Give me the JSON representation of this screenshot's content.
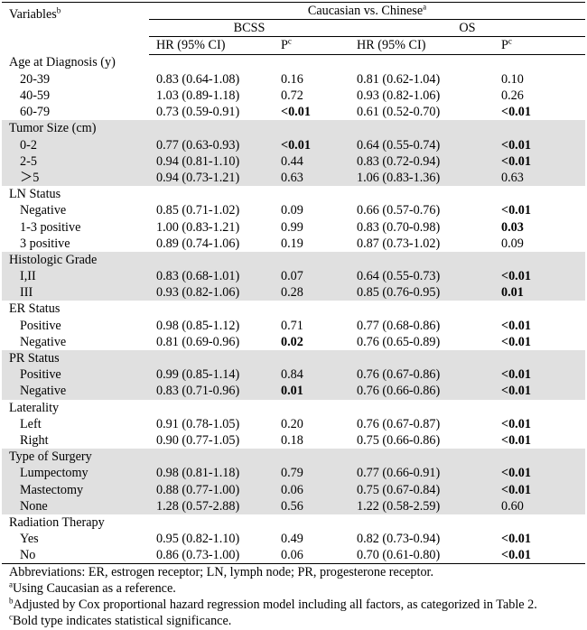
{
  "header": {
    "variables_label": "Variables",
    "variables_sup": "b",
    "comparison": "Caucasian vs. Chinese",
    "comparison_sup": "a",
    "bcss": "BCSS",
    "os": "OS",
    "hr_label": "HR (95% CI)",
    "p_label": "P",
    "p_sup": "c"
  },
  "groups": [
    {
      "title": "Age at Diagnosis (y)",
      "shaded": false,
      "rows": [
        {
          "label": "20-39",
          "bcss_hr": "0.83 (0.64-1.08)",
          "bcss_p": "0.16",
          "bcss_bold": false,
          "os_hr": "0.81 (0.62-1.04)",
          "os_p": "0.10",
          "os_bold": false
        },
        {
          "label": "40-59",
          "bcss_hr": "1.03 (0.89-1.18)",
          "bcss_p": "0.72",
          "bcss_bold": false,
          "os_hr": "0.93 (0.82-1.06)",
          "os_p": "0.26",
          "os_bold": false
        },
        {
          "label": "60-79",
          "bcss_hr": "0.73 (0.59-0.91)",
          "bcss_p": "<0.01",
          "bcss_bold": true,
          "os_hr": "0.61 (0.52-0.70)",
          "os_p": "<0.01",
          "os_bold": true
        }
      ]
    },
    {
      "title": "Tumor Size (cm)",
      "shaded": true,
      "rows": [
        {
          "label": "0-2",
          "bcss_hr": "0.77 (0.63-0.93)",
          "bcss_p": "<0.01",
          "bcss_bold": true,
          "os_hr": "0.64 (0.55-0.74)",
          "os_p": "<0.01",
          "os_bold": true
        },
        {
          "label": "2-5",
          "bcss_hr": "0.94 (0.81-1.10)",
          "bcss_p": "0.44",
          "bcss_bold": false,
          "os_hr": "0.83 (0.72-0.94)",
          "os_p": "<0.01",
          "os_bold": true
        },
        {
          "label": "＞5",
          "bcss_hr": "0.94 (0.73-1.21)",
          "bcss_p": "0.63",
          "bcss_bold": false,
          "os_hr": "1.06 (0.83-1.36)",
          "os_p": "0.63",
          "os_bold": false
        }
      ]
    },
    {
      "title": "LN Status",
      "shaded": false,
      "rows": [
        {
          "label": "Negative",
          "bcss_hr": "0.85 (0.71-1.02)",
          "bcss_p": "0.09",
          "bcss_bold": false,
          "os_hr": "0.66 (0.57-0.76)",
          "os_p": "<0.01",
          "os_bold": true
        },
        {
          "label": "1-3 positive",
          "bcss_hr": "1.00 (0.83-1.21)",
          "bcss_p": "0.99",
          "bcss_bold": false,
          "os_hr": "0.83 (0.70-0.98)",
          "os_p": "0.03",
          "os_bold": true
        },
        {
          "label": "3 positive",
          "bcss_hr": "0.89 (0.74-1.06)",
          "bcss_p": "0.19",
          "bcss_bold": false,
          "os_hr": "0.87 (0.73-1.02)",
          "os_p": "0.09",
          "os_bold": false
        }
      ]
    },
    {
      "title": "Histologic Grade",
      "shaded": true,
      "rows": [
        {
          "label": "I,II",
          "bcss_hr": "0.83 (0.68-1.01)",
          "bcss_p": "0.07",
          "bcss_bold": false,
          "os_hr": "0.64 (0.55-0.73)",
          "os_p": "<0.01",
          "os_bold": true
        },
        {
          "label": "III",
          "bcss_hr": "0.93 (0.82-1.06)",
          "bcss_p": "0.28",
          "bcss_bold": false,
          "os_hr": "0.85 (0.76-0.95)",
          "os_p": "0.01",
          "os_bold": true
        }
      ]
    },
    {
      "title": "ER Status",
      "shaded": false,
      "rows": [
        {
          "label": "Positive",
          "bcss_hr": "0.98 (0.85-1.12)",
          "bcss_p": "0.71",
          "bcss_bold": false,
          "os_hr": "0.77 (0.68-0.86)",
          "os_p": "<0.01",
          "os_bold": true
        },
        {
          "label": "Negative",
          "bcss_hr": "0.81 (0.69-0.96)",
          "bcss_p": "0.02",
          "bcss_bold": true,
          "os_hr": "0.76 (0.65-0.89)",
          "os_p": "<0.01",
          "os_bold": true
        }
      ]
    },
    {
      "title": "PR Status",
      "shaded": true,
      "rows": [
        {
          "label": "Positive",
          "bcss_hr": "0.99 (0.85-1.14)",
          "bcss_p": "0.84",
          "bcss_bold": false,
          "os_hr": "0.76 (0.67-0.86)",
          "os_p": "<0.01",
          "os_bold": true
        },
        {
          "label": "Negative",
          "bcss_hr": "0.83 (0.71-0.96)",
          "bcss_p": "0.01",
          "bcss_bold": true,
          "os_hr": "0.76 (0.66-0.86)",
          "os_p": "<0.01",
          "os_bold": true
        }
      ]
    },
    {
      "title": "Laterality",
      "shaded": false,
      "rows": [
        {
          "label": "Left",
          "bcss_hr": "0.91 (0.78-1.05)",
          "bcss_p": "0.20",
          "bcss_bold": false,
          "os_hr": "0.76 (0.67-0.87)",
          "os_p": "<0.01",
          "os_bold": true
        },
        {
          "label": "Right",
          "bcss_hr": "0.90 (0.77-1.05)",
          "bcss_p": "0.18",
          "bcss_bold": false,
          "os_hr": "0.75 (0.66-0.86)",
          "os_p": "<0.01",
          "os_bold": true
        }
      ]
    },
    {
      "title": "Type of Surgery",
      "shaded": true,
      "rows": [
        {
          "label": "Lumpectomy",
          "bcss_hr": "0.98 (0.81-1.18)",
          "bcss_p": "0.79",
          "bcss_bold": false,
          "os_hr": "0.77 (0.66-0.91)",
          "os_p": "<0.01",
          "os_bold": true
        },
        {
          "label": "Mastectomy",
          "bcss_hr": "0.88 (0.77-1.00)",
          "bcss_p": "0.06",
          "bcss_bold": false,
          "os_hr": "0.75 (0.67-0.84)",
          "os_p": "<0.01",
          "os_bold": true
        },
        {
          "label": "None",
          "bcss_hr": "1.28 (0.57-2.88)",
          "bcss_p": "0.56",
          "bcss_bold": false,
          "os_hr": "1.22 (0.58-2.59)",
          "os_p": "0.60",
          "os_bold": false
        }
      ]
    },
    {
      "title": "Radiation Therapy",
      "shaded": false,
      "rows": [
        {
          "label": "Yes",
          "bcss_hr": "0.95 (0.82-1.10)",
          "bcss_p": "0.49",
          "bcss_bold": false,
          "os_hr": "0.82 (0.73-0.94)",
          "os_p": "<0.01",
          "os_bold": true
        },
        {
          "label": "No",
          "bcss_hr": "0.86 (0.73-1.00)",
          "bcss_p": "0.06",
          "bcss_bold": false,
          "os_hr": "0.70 (0.61-0.80)",
          "os_p": "<0.01",
          "os_bold": true
        }
      ]
    }
  ],
  "footnotes": [
    {
      "sup": "",
      "text": "Abbreviations: ER, estrogen receptor; LN, lymph node; PR, progesterone receptor."
    },
    {
      "sup": "a",
      "text": "Using Caucasian as a reference."
    },
    {
      "sup": "b",
      "text": "Adjusted by Cox proportional hazard regression model including all factors, as categorized in Table 2."
    },
    {
      "sup": "c",
      "text": "Bold type indicates statistical significance."
    }
  ]
}
